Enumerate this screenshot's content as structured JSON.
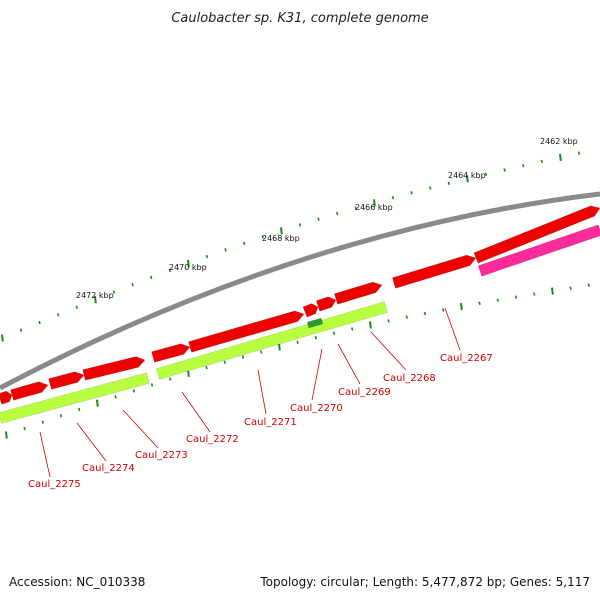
{
  "map": {
    "title": "Caulobacter sp. K31, complete genome",
    "accession_label": "Accession: NC_010338",
    "summary_label": "Topology: circular; Length: 5,477,872 bp; Genes: 5,117",
    "colors": {
      "backbone": "#8a8a8a",
      "cds_forward": "#ee0000",
      "cds_reverse": "#b8ff40",
      "rna": "#ff2a9a",
      "highlight": "#2a9a2a",
      "ticks": "#1a8a1a",
      "labels": "#cc0000"
    },
    "kbp_labels": [
      {
        "text": "2462 kbp"
      },
      {
        "text": "2464 kbp"
      },
      {
        "text": "2466 kbp"
      },
      {
        "text": "2468 kbp"
      },
      {
        "text": "2470 kbp"
      },
      {
        "text": "2472 kbp"
      }
    ],
    "gene_labels": [
      {
        "text": "Caul_2267"
      },
      {
        "text": "Caul_2268"
      },
      {
        "text": "Caul_2269"
      },
      {
        "text": "Caul_2270"
      },
      {
        "text": "Caul_2271"
      },
      {
        "text": "Caul_2272"
      },
      {
        "text": "Caul_2273"
      },
      {
        "text": "Caul_2274"
      },
      {
        "text": "Caul_2275"
      }
    ]
  }
}
